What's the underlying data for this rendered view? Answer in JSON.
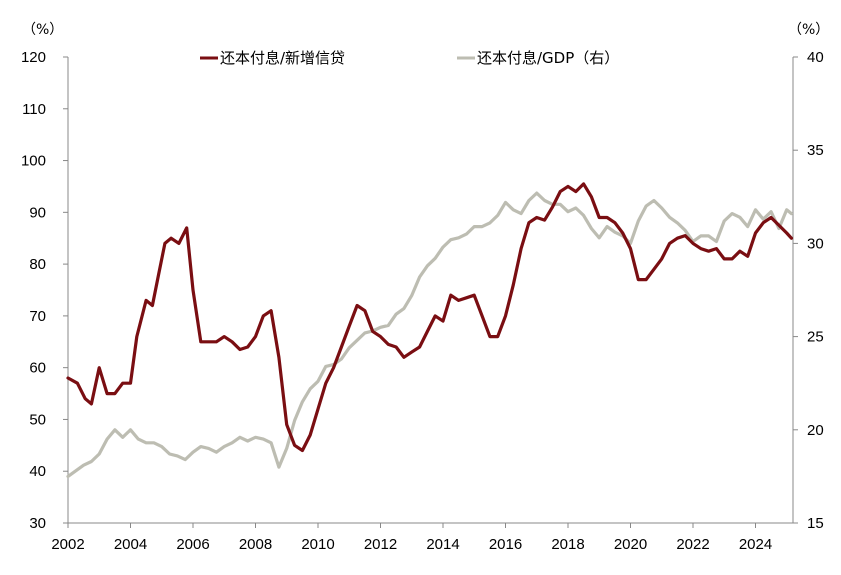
{
  "chart_data": {
    "type": "line",
    "title": "",
    "xlabel": "",
    "y_left_unit": "（%）",
    "y_right_unit": "（%）",
    "xlim": [
      2002,
      2025.2
    ],
    "x_ticks": [
      2002,
      2004,
      2006,
      2008,
      2010,
      2012,
      2014,
      2016,
      2018,
      2020,
      2022,
      2024
    ],
    "x_tick_labels": [
      "2002",
      "2004",
      "2006",
      "2008",
      "2010",
      "2012",
      "2014",
      "2016",
      "2018",
      "2020",
      "2022",
      "2024"
    ],
    "ylim_left": [
      30,
      120
    ],
    "y_left_ticks": [
      30,
      40,
      50,
      60,
      70,
      80,
      90,
      100,
      110,
      120
    ],
    "y_left_tick_labels": [
      "30",
      "40",
      "50",
      "60",
      "70",
      "80",
      "90",
      "100",
      "110",
      "120"
    ],
    "ylim_right": [
      15,
      40
    ],
    "y_right_ticks": [
      15,
      20,
      25,
      30,
      35,
      40
    ],
    "y_right_tick_labels": [
      "15",
      "20",
      "25",
      "30",
      "35",
      "40"
    ],
    "grid": false,
    "legend_position": "top-center",
    "series": [
      {
        "name": "还本付息/新增信贷",
        "axis": "left",
        "color": "#7a0e12",
        "points": [
          [
            2002.0,
            58
          ],
          [
            2002.3,
            57
          ],
          [
            2002.55,
            54
          ],
          [
            2002.75,
            53
          ],
          [
            2003.0,
            60
          ],
          [
            2003.25,
            55
          ],
          [
            2003.5,
            55
          ],
          [
            2003.75,
            57
          ],
          [
            2004.0,
            57
          ],
          [
            2004.2,
            66
          ],
          [
            2004.5,
            73
          ],
          [
            2004.7,
            72
          ],
          [
            2004.9,
            78
          ],
          [
            2005.1,
            84
          ],
          [
            2005.3,
            85
          ],
          [
            2005.55,
            84
          ],
          [
            2005.8,
            87
          ],
          [
            2006.0,
            75
          ],
          [
            2006.25,
            65
          ],
          [
            2006.5,
            65
          ],
          [
            2006.75,
            65
          ],
          [
            2007.0,
            66
          ],
          [
            2007.25,
            65
          ],
          [
            2007.5,
            63.5
          ],
          [
            2007.75,
            64
          ],
          [
            2008.0,
            66
          ],
          [
            2008.25,
            70
          ],
          [
            2008.5,
            71
          ],
          [
            2008.75,
            62
          ],
          [
            2009.0,
            49
          ],
          [
            2009.25,
            45
          ],
          [
            2009.5,
            44
          ],
          [
            2009.75,
            47
          ],
          [
            2010.0,
            52
          ],
          [
            2010.25,
            57
          ],
          [
            2010.5,
            60
          ],
          [
            2010.75,
            64
          ],
          [
            2011.0,
            68
          ],
          [
            2011.25,
            72
          ],
          [
            2011.5,
            71
          ],
          [
            2011.75,
            67
          ],
          [
            2012.0,
            66
          ],
          [
            2012.25,
            64.5
          ],
          [
            2012.5,
            64
          ],
          [
            2012.75,
            62
          ],
          [
            2013.0,
            63
          ],
          [
            2013.25,
            64
          ],
          [
            2013.5,
            67
          ],
          [
            2013.75,
            70
          ],
          [
            2014.0,
            69
          ],
          [
            2014.25,
            74
          ],
          [
            2014.5,
            73
          ],
          [
            2014.75,
            73.5
          ],
          [
            2015.0,
            74
          ],
          [
            2015.25,
            70
          ],
          [
            2015.5,
            66
          ],
          [
            2015.75,
            66
          ],
          [
            2016.0,
            70
          ],
          [
            2016.25,
            76
          ],
          [
            2016.5,
            83
          ],
          [
            2016.75,
            88
          ],
          [
            2017.0,
            89
          ],
          [
            2017.25,
            88.5
          ],
          [
            2017.5,
            91
          ],
          [
            2017.75,
            94
          ],
          [
            2018.0,
            95
          ],
          [
            2018.25,
            94
          ],
          [
            2018.5,
            95.5
          ],
          [
            2018.75,
            93
          ],
          [
            2019.0,
            89
          ],
          [
            2019.25,
            89
          ],
          [
            2019.5,
            88
          ],
          [
            2019.75,
            86
          ],
          [
            2020.0,
            83
          ],
          [
            2020.25,
            77
          ],
          [
            2020.5,
            77
          ],
          [
            2020.75,
            79
          ],
          [
            2021.0,
            81
          ],
          [
            2021.25,
            84
          ],
          [
            2021.5,
            85
          ],
          [
            2021.75,
            85.5
          ],
          [
            2022.0,
            84
          ],
          [
            2022.25,
            83
          ],
          [
            2022.5,
            82.5
          ],
          [
            2022.75,
            83
          ],
          [
            2023.0,
            81
          ],
          [
            2023.25,
            81
          ],
          [
            2023.5,
            82.5
          ],
          [
            2023.75,
            81.5
          ],
          [
            2024.0,
            86
          ],
          [
            2024.25,
            88
          ],
          [
            2024.5,
            89
          ],
          [
            2024.75,
            87.5
          ],
          [
            2025.0,
            86
          ],
          [
            2025.15,
            85
          ]
        ]
      },
      {
        "name": "还本付息/GDP（右）",
        "axis": "right",
        "color": "#bdbdb2",
        "points": [
          [
            2002.0,
            17.5
          ],
          [
            2002.25,
            17.8
          ],
          [
            2002.5,
            18.1
          ],
          [
            2002.75,
            18.3
          ],
          [
            2003.0,
            18.7
          ],
          [
            2003.25,
            19.5
          ],
          [
            2003.5,
            20.0
          ],
          [
            2003.75,
            19.6
          ],
          [
            2004.0,
            20.0
          ],
          [
            2004.25,
            19.5
          ],
          [
            2004.5,
            19.3
          ],
          [
            2004.75,
            19.3
          ],
          [
            2005.0,
            19.1
          ],
          [
            2005.25,
            18.7
          ],
          [
            2005.5,
            18.6
          ],
          [
            2005.75,
            18.4
          ],
          [
            2006.0,
            18.8
          ],
          [
            2006.25,
            19.1
          ],
          [
            2006.5,
            19.0
          ],
          [
            2006.75,
            18.8
          ],
          [
            2007.0,
            19.1
          ],
          [
            2007.25,
            19.3
          ],
          [
            2007.5,
            19.6
          ],
          [
            2007.75,
            19.4
          ],
          [
            2008.0,
            19.6
          ],
          [
            2008.25,
            19.5
          ],
          [
            2008.5,
            19.3
          ],
          [
            2008.75,
            18.0
          ],
          [
            2009.0,
            19.0
          ],
          [
            2009.25,
            20.5
          ],
          [
            2009.5,
            21.5
          ],
          [
            2009.75,
            22.2
          ],
          [
            2010.0,
            22.6
          ],
          [
            2010.25,
            23.4
          ],
          [
            2010.5,
            23.5
          ],
          [
            2010.75,
            23.8
          ],
          [
            2011.0,
            24.4
          ],
          [
            2011.25,
            24.8
          ],
          [
            2011.5,
            25.2
          ],
          [
            2011.75,
            25.3
          ],
          [
            2012.0,
            25.5
          ],
          [
            2012.25,
            25.6
          ],
          [
            2012.5,
            26.2
          ],
          [
            2012.75,
            26.5
          ],
          [
            2013.0,
            27.2
          ],
          [
            2013.25,
            28.2
          ],
          [
            2013.5,
            28.8
          ],
          [
            2013.75,
            29.2
          ],
          [
            2014.0,
            29.8
          ],
          [
            2014.25,
            30.2
          ],
          [
            2014.5,
            30.3
          ],
          [
            2014.75,
            30.5
          ],
          [
            2015.0,
            30.9
          ],
          [
            2015.25,
            30.9
          ],
          [
            2015.5,
            31.1
          ],
          [
            2015.75,
            31.5
          ],
          [
            2016.0,
            32.2
          ],
          [
            2016.25,
            31.8
          ],
          [
            2016.5,
            31.6
          ],
          [
            2016.75,
            32.3
          ],
          [
            2017.0,
            32.7
          ],
          [
            2017.25,
            32.3
          ],
          [
            2017.5,
            32.1
          ],
          [
            2017.75,
            32.1
          ],
          [
            2018.0,
            31.7
          ],
          [
            2018.25,
            31.9
          ],
          [
            2018.5,
            31.5
          ],
          [
            2018.75,
            30.8
          ],
          [
            2019.0,
            30.3
          ],
          [
            2019.25,
            30.9
          ],
          [
            2019.5,
            30.6
          ],
          [
            2019.75,
            30.4
          ],
          [
            2020.0,
            30.0
          ],
          [
            2020.25,
            31.2
          ],
          [
            2020.5,
            32.0
          ],
          [
            2020.75,
            32.3
          ],
          [
            2021.0,
            31.9
          ],
          [
            2021.25,
            31.4
          ],
          [
            2021.5,
            31.1
          ],
          [
            2021.75,
            30.7
          ],
          [
            2022.0,
            30.1
          ],
          [
            2022.25,
            30.4
          ],
          [
            2022.5,
            30.4
          ],
          [
            2022.75,
            30.1
          ],
          [
            2023.0,
            31.2
          ],
          [
            2023.25,
            31.6
          ],
          [
            2023.5,
            31.4
          ],
          [
            2023.75,
            30.9
          ],
          [
            2024.0,
            31.8
          ],
          [
            2024.25,
            31.3
          ],
          [
            2024.5,
            31.7
          ],
          [
            2024.75,
            30.8
          ],
          [
            2025.0,
            31.8
          ],
          [
            2025.15,
            31.6
          ]
        ]
      }
    ]
  }
}
